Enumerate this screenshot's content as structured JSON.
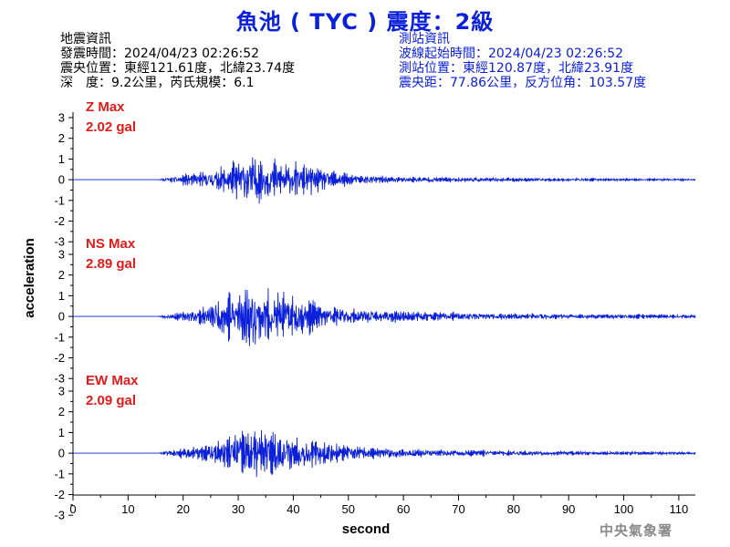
{
  "title": "魚池 ( TYC ) 震度：2級",
  "event_info": {
    "heading": "地震資訊",
    "origin_time": "發震時間：2024/04/23 02:26:52",
    "epicenter": "震央位置：東經121.61度，北緯23.74度",
    "depth_magnitude": "深　度：9.2公里，芮氏規模：6.1"
  },
  "station_info": {
    "heading": "測站資訊",
    "wave_start": "波線起始時間：2024/04/23 02:26:52",
    "location": "測站位置：東經120.87度，北緯23.91度",
    "distance": "震央距：77.86公里，反方位角：103.57度"
  },
  "credit": "中央氣象署",
  "colors": {
    "trace": "#0b20d8",
    "max_label": "#e21a1a",
    "title": "#0b20d8"
  },
  "chart_data": {
    "type": "line",
    "xlabel": "second",
    "ylabel": "acceleration",
    "xlim": [
      0,
      113
    ],
    "x_ticks": [
      0,
      10,
      20,
      30,
      40,
      50,
      60,
      70,
      80,
      90,
      100,
      110
    ],
    "panels": [
      {
        "name": "Z",
        "max_label": "Z Max",
        "max_value": "2.02 gal",
        "peak": 2.02,
        "ylim": [
          -3,
          3
        ],
        "y_ticks": [
          3,
          2,
          1,
          0,
          -1,
          -2,
          -3
        ],
        "envelope": [
          [
            0,
            0
          ],
          [
            15.5,
            0.0
          ],
          [
            16,
            0.1
          ],
          [
            20,
            0.35
          ],
          [
            25,
            0.6
          ],
          [
            28,
            1.0
          ],
          [
            31,
            1.85
          ],
          [
            34,
            1.55
          ],
          [
            37,
            1.3
          ],
          [
            40,
            1.1
          ],
          [
            44,
            0.9
          ],
          [
            48,
            0.55
          ],
          [
            52,
            0.3
          ],
          [
            60,
            0.22
          ],
          [
            70,
            0.16
          ],
          [
            80,
            0.12
          ],
          [
            90,
            0.1
          ],
          [
            100,
            0.08
          ],
          [
            113,
            0.06
          ]
        ],
        "seed": 11
      },
      {
        "name": "NS",
        "max_label": "NS Max",
        "max_value": "2.89 gal",
        "peak": 2.89,
        "ylim": [
          -3,
          3
        ],
        "y_ticks": [
          3,
          2,
          1,
          0,
          -1,
          -2,
          -3
        ],
        "envelope": [
          [
            0,
            0
          ],
          [
            15.5,
            0.0
          ],
          [
            16,
            0.08
          ],
          [
            20,
            0.3
          ],
          [
            24,
            0.6
          ],
          [
            27,
            1.3
          ],
          [
            31,
            2.4
          ],
          [
            35,
            1.7
          ],
          [
            38,
            1.4
          ],
          [
            42,
            1.1
          ],
          [
            46,
            0.8
          ],
          [
            50,
            0.55
          ],
          [
            56,
            0.4
          ],
          [
            65,
            0.3
          ],
          [
            75,
            0.22
          ],
          [
            85,
            0.2
          ],
          [
            95,
            0.16
          ],
          [
            105,
            0.13
          ],
          [
            113,
            0.12
          ]
        ],
        "seed": 23
      },
      {
        "name": "EW",
        "max_label": "EW Max",
        "max_value": "2.09 gal",
        "peak": 2.09,
        "ylim": [
          -3,
          3
        ],
        "y_ticks": [
          3,
          2,
          1,
          0,
          -1,
          -2,
          -3
        ],
        "envelope": [
          [
            0,
            0
          ],
          [
            15.5,
            0.0
          ],
          [
            16,
            0.1
          ],
          [
            20,
            0.35
          ],
          [
            25,
            0.6
          ],
          [
            28,
            1.1
          ],
          [
            31,
            1.8
          ],
          [
            34,
            1.6
          ],
          [
            38,
            1.4
          ],
          [
            42,
            1.0
          ],
          [
            46,
            0.8
          ],
          [
            50,
            0.5
          ],
          [
            56,
            0.35
          ],
          [
            65,
            0.25
          ],
          [
            75,
            0.2
          ],
          [
            85,
            0.16
          ],
          [
            95,
            0.12
          ],
          [
            105,
            0.1
          ],
          [
            113,
            0.08
          ]
        ],
        "seed": 37
      }
    ]
  }
}
